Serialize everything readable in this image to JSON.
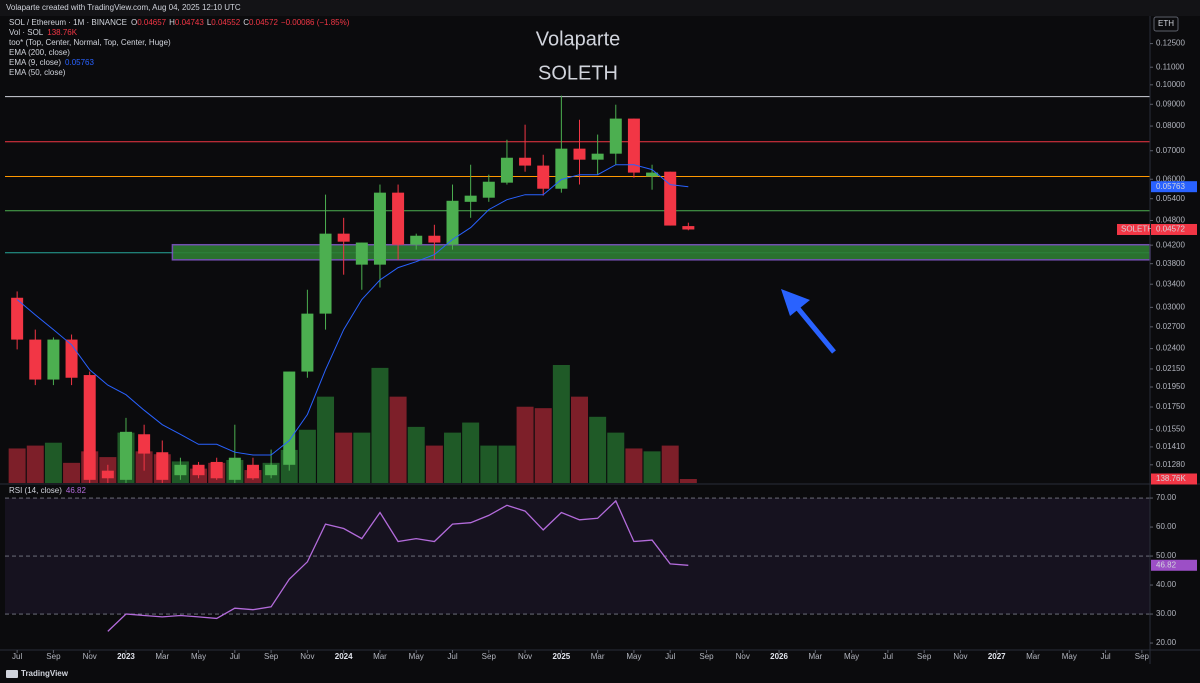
{
  "banner": "Volaparte created with TradingView.com, Aug 04, 2025 12:10 UTC",
  "brand": "TradingView",
  "chart_data": [
    {
      "type": "candlestick",
      "symbol": "SOL / Ethereum · 1M · BINANCE",
      "ohlc_keys": [
        "O",
        "H",
        "L",
        "C"
      ],
      "change": "−0.00086 (−1.85%)",
      "watermark": [
        "Volaparte",
        "SOLETH"
      ],
      "currency": "ETH",
      "price_tag": "SOLETH",
      "legend": [
        "too* (Top, Center, Normal, Top, Center, Huge)",
        "EMA (200, close)",
        "EMA (50, close)"
      ],
      "x": [
        "2022-07",
        "2022-08",
        "2022-09",
        "2022-10",
        "2022-11",
        "2022-12",
        "2023-01",
        "2023-02",
        "2023-03",
        "2023-04",
        "2023-05",
        "2023-06",
        "2023-07",
        "2023-08",
        "2023-09",
        "2023-10",
        "2023-11",
        "2023-12",
        "2024-01",
        "2024-02",
        "2024-03",
        "2024-04",
        "2024-05",
        "2024-06",
        "2024-07",
        "2024-08",
        "2024-09",
        "2024-10",
        "2024-11",
        "2024-12",
        "2025-01",
        "2025-02",
        "2025-03",
        "2025-04",
        "2025-05",
        "2025-06",
        "2025-07",
        "2025-08"
      ],
      "open": [
        0.0316,
        0.0252,
        0.0203,
        0.0252,
        0.0208,
        0.0124,
        0.0118,
        0.0151,
        0.0137,
        0.0121,
        0.0128,
        0.013,
        0.0118,
        0.0128,
        0.0121,
        0.0128,
        0.0212,
        0.029,
        0.0447,
        0.0378,
        0.0378,
        0.0558,
        0.0421,
        0.0442,
        0.0421,
        0.0531,
        0.0543,
        0.0589,
        0.0674,
        0.0646,
        0.057,
        0.0708,
        0.0667,
        0.0689,
        0.0833,
        0.0609,
        0.0625,
        0.04657
      ],
      "high": [
        0.0327,
        0.0266,
        0.0255,
        0.0259,
        0.0212,
        0.0128,
        0.0165,
        0.0159,
        0.0146,
        0.0133,
        0.013,
        0.0133,
        0.0159,
        0.0133,
        0.0139,
        0.0212,
        0.033,
        0.0552,
        0.0487,
        0.0426,
        0.0583,
        0.0583,
        0.0447,
        0.0469,
        0.0583,
        0.0649,
        0.0615,
        0.0743,
        0.0806,
        0.0685,
        0.0943,
        0.0828,
        0.0764,
        0.0898,
        0.0833,
        0.0649,
        0.0625,
        0.04743
      ],
      "low": [
        0.0239,
        0.0197,
        0.0197,
        0.0197,
        0.0116,
        0.0116,
        0.0116,
        0.0124,
        0.0116,
        0.0118,
        0.0119,
        0.0118,
        0.0116,
        0.0118,
        0.0119,
        0.0124,
        0.0205,
        0.0266,
        0.0358,
        0.033,
        0.0334,
        0.0388,
        0.041,
        0.0388,
        0.041,
        0.0487,
        0.0531,
        0.0583,
        0.0625,
        0.0549,
        0.0558,
        0.0583,
        0.0615,
        0.0649,
        0.0605,
        0.0567,
        0.0467,
        0.04552
      ],
      "close": [
        0.0252,
        0.0203,
        0.0252,
        0.0205,
        0.0118,
        0.0119,
        0.0153,
        0.0136,
        0.0118,
        0.0128,
        0.0121,
        0.0119,
        0.0133,
        0.0119,
        0.0128,
        0.0212,
        0.029,
        0.0447,
        0.0428,
        0.0426,
        0.0558,
        0.0421,
        0.0442,
        0.0426,
        0.0534,
        0.0549,
        0.0592,
        0.0674,
        0.0646,
        0.057,
        0.0708,
        0.0667,
        0.0689,
        0.0833,
        0.0622,
        0.0622,
        0.0467,
        0.04572
      ],
      "up_color": "#4caf50",
      "down_color": "#f23645",
      "volume": {
        "name": "Vol · SOL",
        "up_color": "#1f5a27",
        "down_color": "#7d1f29",
        "values": [
          1200000,
          1300000,
          1400000,
          700000,
          1100000,
          900000,
          1750000,
          1100000,
          1000000,
          750000,
          500000,
          700000,
          800000,
          450000,
          700000,
          1150000,
          1850000,
          3000000,
          1750000,
          1750000,
          4000000,
          3000000,
          1950000,
          1300000,
          1750000,
          2100000,
          1300000,
          1300000,
          2650000,
          2600000,
          4100000,
          3000000,
          2300000,
          1750000,
          1200000,
          1100000,
          1300000,
          138760
        ],
        "value_labels": [
          null,
          null,
          null,
          null,
          null,
          null,
          null,
          null,
          null,
          null,
          null,
          null,
          null,
          null,
          null,
          null,
          null,
          null,
          null,
          null,
          null,
          null,
          null,
          null,
          null,
          null,
          null,
          null,
          null,
          null,
          null,
          null,
          null,
          null,
          null,
          null,
          null,
          "138.76K"
        ]
      },
      "series": [
        {
          "name": "EMA (9, close)",
          "color": "#2962ff",
          "values": [
            0.0313,
            0.0288,
            0.0266,
            0.0245,
            0.0214,
            0.0197,
            0.0187,
            0.0172,
            0.0159,
            0.0151,
            0.0143,
            0.0143,
            0.0137,
            0.0135,
            0.0135,
            0.0146,
            0.0168,
            0.0214,
            0.0266,
            0.0313,
            0.0348,
            0.0372,
            0.0384,
            0.0399,
            0.0433,
            0.0462,
            0.0509,
            0.0537,
            0.0552,
            0.0552,
            0.0599,
            0.0615,
            0.0615,
            0.0649,
            0.0649,
            0.0632,
            0.0583,
            0.05763
          ]
        }
      ],
      "levels": [
        {
          "value": 0.0938,
          "color": "#d1d4dc"
        },
        {
          "value": 0.0735,
          "color": "#f23645"
        },
        {
          "value": 0.0609,
          "color": "#ff9800"
        },
        {
          "value": 0.0506,
          "color": "#4caf50"
        },
        {
          "value": 0.0403,
          "color": "#26a69a"
        }
      ],
      "zone": {
        "from": "2023-04",
        "range": [
          0.0388,
          0.0421
        ],
        "color": "#2e7d32",
        "border": "#7e57c2"
      },
      "log_scale": true,
      "ylim": [
        0.0116,
        0.142
      ],
      "yticks": [
        {
          "value": 0.125,
          "label": "0.12500"
        },
        {
          "value": 0.11,
          "label": "0.11000"
        },
        {
          "value": 0.1,
          "label": "0.10000"
        },
        {
          "value": 0.09,
          "label": "0.09000"
        },
        {
          "value": 0.08,
          "label": "0.08000"
        },
        {
          "value": 0.07,
          "label": "0.07000"
        },
        {
          "value": 0.06,
          "label": "0.06000"
        },
        {
          "value": 0.054,
          "label": "0.05400"
        },
        {
          "value": 0.048,
          "label": "0.04800"
        },
        {
          "value": 0.042,
          "label": "0.04200"
        },
        {
          "value": 0.038,
          "label": "0.03800"
        },
        {
          "value": 0.034,
          "label": "0.03400"
        },
        {
          "value": 0.03,
          "label": "0.03000"
        },
        {
          "value": 0.027,
          "label": "0.02700"
        },
        {
          "value": 0.024,
          "label": "0.02400"
        },
        {
          "value": 0.0215,
          "label": "0.02150"
        },
        {
          "value": 0.0195,
          "label": "0.01950"
        },
        {
          "value": 0.0175,
          "label": "0.01750"
        },
        {
          "value": 0.0155,
          "label": "0.01550"
        },
        {
          "value": 0.0141,
          "label": "0.01410"
        },
        {
          "value": 0.0128,
          "label": "0.01280"
        }
      ],
      "xlim": [
        "2022-06",
        "2027-10"
      ],
      "xticks": [
        {
          "value": "2022-07",
          "label": "Jul"
        },
        {
          "value": "2022-09",
          "label": "Sep"
        },
        {
          "value": "2022-11",
          "label": "Nov"
        },
        {
          "value": "2023-01",
          "label": "2023"
        },
        {
          "value": "2023-03",
          "label": "Mar"
        },
        {
          "value": "2023-05",
          "label": "May"
        },
        {
          "value": "2023-07",
          "label": "Jul"
        },
        {
          "value": "2023-09",
          "label": "Sep"
        },
        {
          "value": "2023-11",
          "label": "Nov"
        },
        {
          "value": "2024-01",
          "label": "2024"
        },
        {
          "value": "2024-03",
          "label": "Mar"
        },
        {
          "value": "2024-05",
          "label": "May"
        },
        {
          "value": "2024-07",
          "label": "Jul"
        },
        {
          "value": "2024-09",
          "label": "Sep"
        },
        {
          "value": "2024-11",
          "label": "Nov"
        },
        {
          "value": "2025-01",
          "label": "2025"
        },
        {
          "value": "2025-03",
          "label": "Mar"
        },
        {
          "value": "2025-05",
          "label": "May"
        },
        {
          "value": "2025-07",
          "label": "Jul"
        },
        {
          "value": "2025-09",
          "label": "Sep"
        },
        {
          "value": "2025-11",
          "label": "Nov"
        },
        {
          "value": "2026-01",
          "label": "2026"
        },
        {
          "value": "2026-03",
          "label": "Mar"
        },
        {
          "value": "2026-05",
          "label": "May"
        },
        {
          "value": "2026-07",
          "label": "Jul"
        },
        {
          "value": "2026-09",
          "label": "Sep"
        },
        {
          "value": "2026-11",
          "label": "Nov"
        },
        {
          "value": "2027-01",
          "label": "2027"
        },
        {
          "value": "2027-03",
          "label": "Mar"
        },
        {
          "value": "2027-05",
          "label": "May"
        },
        {
          "value": "2027-07",
          "label": "Jul"
        },
        {
          "value": "2027-09",
          "label": "Sep"
        }
      ]
    },
    {
      "type": "line",
      "series": [
        {
          "name": "RSI (14, close)",
          "color": "#b36bdb",
          "values": [
            null,
            null,
            null,
            null,
            null,
            24,
            30,
            29.5,
            29,
            29.5,
            29,
            28.5,
            32,
            31.5,
            32.5,
            42,
            48,
            61,
            59.5,
            56,
            65,
            55,
            56,
            55,
            61,
            61.5,
            64,
            67.5,
            65.5,
            59,
            65,
            62.5,
            63,
            69,
            55,
            55.5,
            47.3,
            46.82
          ]
        }
      ],
      "band": [
        30,
        70
      ],
      "dashed_levels": [
        70,
        50,
        30
      ],
      "ylim": [
        17.6,
        74.5
      ],
      "yticks": [
        {
          "value": 70,
          "label": "70.00"
        },
        {
          "value": 60,
          "label": "60.00"
        },
        {
          "value": 50,
          "label": "50.00"
        },
        {
          "value": 40,
          "label": "40.00"
        },
        {
          "value": 30,
          "label": "30.00"
        },
        {
          "value": 20,
          "label": "20.00"
        }
      ]
    }
  ]
}
